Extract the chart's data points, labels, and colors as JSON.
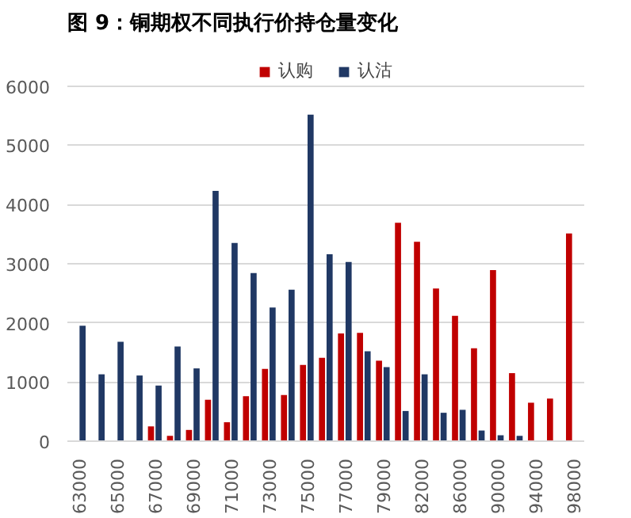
{
  "chart_data": {
    "type": "bar",
    "title": "图 9：铜期权不同执行价持仓量变化",
    "categories": [
      "63000",
      null,
      "65000",
      null,
      "67000",
      null,
      "69000",
      null,
      "71000",
      null,
      "73000",
      null,
      "75000",
      null,
      "77000",
      null,
      "79000",
      null,
      "82000",
      null,
      "86000",
      null,
      "90000",
      null,
      "94000",
      null,
      "98000"
    ],
    "series": [
      {
        "name": "认购",
        "color": "#c00000",
        "values": [
          0,
          0,
          0,
          0,
          250,
          90,
          190,
          700,
          320,
          760,
          1220,
          780,
          1290,
          1410,
          1820,
          1830,
          1360,
          3690,
          3370,
          2580,
          2120,
          1570,
          2890,
          1150,
          650,
          720,
          3510
        ]
      },
      {
        "name": "认沽",
        "color": "#203864",
        "values": [
          1950,
          1130,
          1680,
          1110,
          940,
          1600,
          1230,
          4230,
          3350,
          2840,
          2260,
          2560,
          5520,
          3160,
          3030,
          1520,
          1250,
          510,
          1130,
          480,
          530,
          180,
          100,
          90,
          0,
          0,
          0
        ]
      }
    ],
    "ylim": [
      0,
      6000
    ],
    "yticks": [
      0,
      1000,
      2000,
      3000,
      4000,
      5000,
      6000
    ],
    "grid": "y",
    "legend": "top"
  }
}
